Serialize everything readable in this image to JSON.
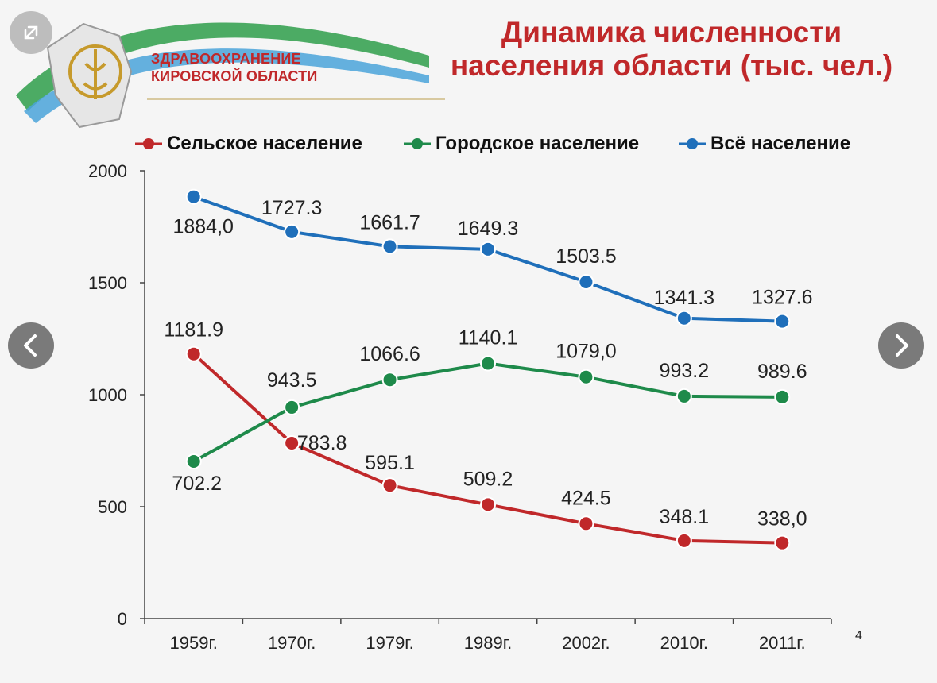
{
  "header": {
    "title_line1": "Динамика численности",
    "title_line2": "населения области (тыс. чел.)",
    "logo_line1": "ЗДРАВООХРАНЕНИЕ",
    "logo_line2": "КИРОВСКОЙ ОБЛАСТИ",
    "title_color": "#c0282a"
  },
  "page_number": "4",
  "controls": {
    "expand_icon": "expand-icon",
    "prev_icon": "chevron-left-icon",
    "next_icon": "chevron-right-icon"
  },
  "chart_data": {
    "type": "line",
    "title": "Динамика численности населения области (тыс. чел.)",
    "categories": [
      "1959г.",
      "1970г.",
      "1979г.",
      "1989г.",
      "2002г.",
      "2010г.",
      "2011г."
    ],
    "ylim": [
      0,
      2000
    ],
    "yticks": [
      0,
      500,
      1000,
      1500,
      2000
    ],
    "grid": false,
    "legend_position": "top",
    "series": [
      {
        "name": "Сельское население",
        "color": "#c0282a",
        "values": [
          1181.9,
          783.8,
          595.1,
          509.2,
          424.5,
          348.1,
          338.0
        ],
        "labels": [
          "1181.9",
          "783.8",
          "595.1",
          "509.2",
          "424.5",
          "348.1",
          "338,0"
        ]
      },
      {
        "name": "Городское население",
        "color": "#1e8a4a",
        "values": [
          702.2,
          943.5,
          1066.6,
          1140.1,
          1079.0,
          993.2,
          989.6
        ],
        "labels": [
          "702.2",
          "943.5",
          "1066.6",
          "1140.1",
          "1079,0",
          "993.2",
          "989.6"
        ]
      },
      {
        "name": "Всё население",
        "color": "#1f6fba",
        "values": [
          1884.0,
          1727.3,
          1661.7,
          1649.3,
          1503.5,
          1341.3,
          1327.6
        ],
        "labels": [
          "1884,0",
          "1727.3",
          "1661.7",
          "1649.3",
          "1503.5",
          "1341.3",
          "1327.6"
        ]
      }
    ]
  }
}
